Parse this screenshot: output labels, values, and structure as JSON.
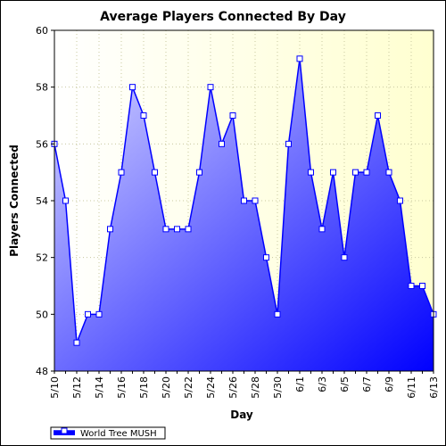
{
  "chart_data": {
    "type": "area",
    "title": "Average Players Connected By Day",
    "xlabel": "Day",
    "ylabel": "Players Connected",
    "ylim": [
      48,
      60
    ],
    "yticks": [
      48,
      50,
      52,
      54,
      56,
      58,
      60
    ],
    "grid": true,
    "legend_position": "bottom-left",
    "categories": [
      "5/10",
      "5/11",
      "5/12",
      "5/13",
      "5/14",
      "5/15",
      "5/16",
      "5/17",
      "5/18",
      "5/19",
      "5/20",
      "5/21",
      "5/22",
      "5/23",
      "5/24",
      "5/25",
      "5/26",
      "5/27",
      "5/28",
      "5/29",
      "5/30",
      "5/31",
      "6/1",
      "6/2",
      "6/3",
      "6/4",
      "6/5",
      "6/6",
      "6/7",
      "6/8",
      "6/9",
      "6/10",
      "6/11",
      "6/12",
      "6/13"
    ],
    "xtick_labels": [
      "5/10",
      "5/12",
      "5/14",
      "5/16",
      "5/18",
      "5/20",
      "5/22",
      "5/24",
      "5/26",
      "5/28",
      "5/30",
      "6/1",
      "6/3",
      "6/5",
      "6/7",
      "6/9",
      "6/11",
      "6/13"
    ],
    "series": [
      {
        "name": "World Tree MUSH",
        "values": [
          56,
          54,
          49,
          50,
          50,
          53,
          55,
          58,
          57,
          55,
          53,
          53,
          53,
          55,
          58,
          56,
          57,
          54,
          54,
          52,
          50,
          56,
          59,
          55,
          53,
          55,
          52,
          55,
          55,
          57,
          55,
          54,
          51,
          51,
          50
        ]
      }
    ],
    "colors": {
      "plot_background": "#ffffe0",
      "line": "#0000ff",
      "fill_light": "#c8c8ff",
      "fill_dark": "#0000ff"
    }
  }
}
